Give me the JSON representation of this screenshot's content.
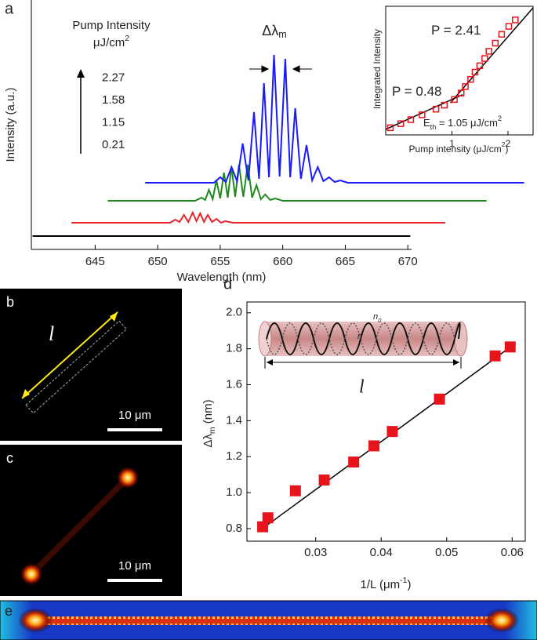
{
  "figure": {
    "panel_labels": [
      "a",
      "b",
      "c",
      "d",
      "e"
    ],
    "scale_bars": [
      "10 μm",
      "10 μm"
    ],
    "length_labels": [
      "l",
      "l"
    ],
    "index_labels": [
      [
        {
          "text": "n"
        },
        {
          "text": "0",
          "pos": "sub"
        }
      ],
      [
        {
          "text": "n"
        }
      ]
    ]
  },
  "chart_data": [
    {
      "type": "line",
      "xlabel": "Wavelength (nm)",
      "ylabel": "Intensity (a.u.)",
      "xlim": [
        639.9,
        670.3
      ],
      "ylim": [
        0,
        3.18
      ],
      "xticks": [
        645,
        650,
        655,
        660,
        665,
        670
      ],
      "legend_title": [
        "Pump Intensity",
        [
          {
            "text": "μJ/cm"
          },
          {
            "text": "2",
            "pos": "sup"
          }
        ]
      ],
      "annotation": [
        {
          "text": "Δλ"
        },
        {
          "text": "m",
          "pos": "sub"
        }
      ],
      "series": [
        {
          "name": "0.21",
          "color": "#000000",
          "x": [
            640,
            655,
            670.2
          ],
          "values": [
            0.17,
            0.17,
            0.17
          ]
        },
        {
          "name": "1.15",
          "color": "#e8242a",
          "x": [
            643.1,
            651.0,
            651.4,
            651.75,
            652.1,
            652.45,
            652.8,
            653.1,
            653.4,
            653.7,
            654.0,
            654.35,
            654.7,
            655.05,
            655.4,
            656.0,
            673.0
          ],
          "values": [
            0.34,
            0.34,
            0.38,
            0.35,
            0.44,
            0.35,
            0.47,
            0.36,
            0.46,
            0.35,
            0.44,
            0.35,
            0.39,
            0.34,
            0.36,
            0.34,
            0.34
          ]
        },
        {
          "name": "1.58",
          "color": "#1e8a1e",
          "x": [
            646.0,
            653.0,
            653.5,
            653.8,
            654.1,
            654.4,
            654.7,
            655.0,
            655.3,
            655.6,
            655.9,
            656.2,
            656.5,
            656.85,
            657.2,
            657.55,
            657.9,
            658.25,
            658.6,
            659.0,
            659.4,
            660.0,
            676.3
          ],
          "values": [
            0.62,
            0.62,
            0.66,
            0.63,
            0.76,
            0.64,
            0.88,
            0.65,
            0.98,
            0.66,
            1.05,
            0.67,
            1.08,
            0.67,
            1.08,
            0.66,
            0.82,
            0.64,
            0.7,
            0.63,
            0.65,
            0.62,
            0.62
          ]
        },
        {
          "name": "2.27",
          "color": "#1a1aff",
          "x": [
            649.0,
            654.5,
            655.0,
            655.45,
            655.9,
            656.35,
            656.8,
            657.25,
            657.7,
            658.1,
            658.5,
            658.9,
            659.3,
            659.75,
            660.2,
            660.6,
            661.0,
            661.45,
            661.9,
            662.35,
            662.8,
            663.25,
            663.7,
            664.15,
            664.6,
            665.2,
            679.3
          ],
          "values": [
            0.85,
            0.85,
            0.92,
            0.86,
            1.05,
            0.87,
            1.35,
            0.88,
            1.75,
            0.9,
            2.12,
            0.92,
            2.48,
            0.93,
            2.43,
            0.92,
            1.8,
            0.9,
            1.33,
            0.88,
            1.05,
            0.87,
            0.92,
            0.86,
            0.88,
            0.85,
            0.85
          ]
        }
      ]
    },
    {
      "type": "scatter",
      "log_x": true,
      "log_y": true,
      "xlabel": [
        {
          "text": "Pump intensity (μJ/cm"
        },
        {
          "text": "2",
          "pos": "sup"
        },
        {
          "text": ")"
        }
      ],
      "ylabel": [
        {
          "text": "Integrated Intensity"
        }
      ],
      "xlim": [
        0.44,
        2.73
      ],
      "ylim": [
        1,
        1000
      ],
      "xticks": [
        1,
        2
      ],
      "series": [
        {
          "color": "#e8141c",
          "marker": "hollow-square",
          "x": [
            0.466,
            0.53,
            0.6,
            0.69,
            0.82,
            0.91,
            1.03,
            1.12,
            1.18,
            1.26,
            1.33,
            1.41,
            1.5,
            1.58,
            1.71,
            1.85,
            2.02,
            2.19
          ],
          "values": [
            1.47,
            1.83,
            2.27,
            2.94,
            3.98,
            4.94,
            6.69,
            9.46,
            13.4,
            19.7,
            29.1,
            41.0,
            60.6,
            89,
            138,
            222,
            340,
            480
          ]
        }
      ],
      "fits": [
        {
          "color": "#000000",
          "x": [
            0.44,
            1.14
          ],
          "values": [
            1.35,
            8.67
          ]
        },
        {
          "color": "#000000",
          "x": [
            0.98,
            2.73
          ],
          "values": [
            5.6,
            920
          ]
        }
      ],
      "annotations": [
        [
          {
            "text": "P = 2.41"
          }
        ],
        [
          {
            "text": "P = 0.48"
          }
        ],
        [
          {
            "text": "E"
          },
          {
            "text": "th",
            "pos": "sub"
          },
          {
            "text": " = 1.05 μJ/cm"
          },
          {
            "text": "2",
            "pos": "sup"
          }
        ]
      ]
    },
    {
      "type": "scatter",
      "log_x": false,
      "log_y": false,
      "xlabel": [
        {
          "text": "1/L (μm"
        },
        {
          "text": "-1",
          "pos": "sup"
        },
        {
          "text": ")"
        }
      ],
      "ylabel": [
        {
          "text": "Δλ"
        },
        {
          "text": "m",
          "pos": "sub"
        },
        {
          "text": " (nm)"
        }
      ],
      "xlim": [
        0.0195,
        0.062
      ],
      "ylim": [
        0.73,
        2.06
      ],
      "xticks": [
        0.03,
        0.04,
        0.05,
        0.06
      ],
      "yticks": [
        0.8,
        {
          "value": 1,
          "label": "1.0"
        },
        1.2,
        1.4,
        1.6,
        1.8,
        {
          "value": 2,
          "label": "2.0"
        }
      ],
      "series": [
        {
          "color": "#e8141c",
          "marker": "square",
          "x": [
            0.0219,
            0.0227,
            0.0269,
            0.0313,
            0.0358,
            0.0389,
            0.0417,
            0.0489,
            0.0574,
            0.0597
          ],
          "values": [
            0.81,
            0.86,
            1.01,
            1.07,
            1.17,
            1.26,
            1.34,
            1.52,
            1.76,
            1.81
          ]
        }
      ],
      "fits": [
        {
          "color": "#000000",
          "x": [
            0.0215,
            0.0605
          ],
          "values": [
            0.79,
            1.83
          ]
        }
      ],
      "annotations": []
    }
  ]
}
